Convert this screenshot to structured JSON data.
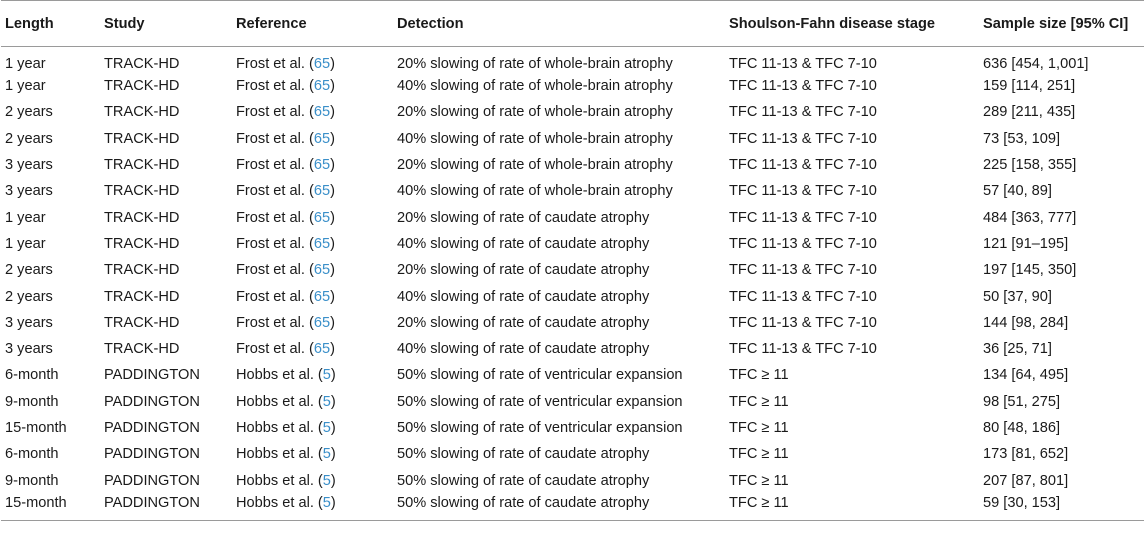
{
  "table": {
    "headers": [
      "Length",
      "Study",
      "Reference",
      "Detection",
      "Shoulson-Fahn disease stage",
      "Sample size [95% CI]"
    ],
    "rows": [
      {
        "length": "1 year",
        "study": "TRACK-HD",
        "ref_author": "Frost et al. (",
        "ref_num": "65",
        "ref_close": ")",
        "detection": "20% slowing of rate of whole-brain atrophy",
        "stage": "TFC 11-13 & TFC 7-10",
        "sample": "636 [454, 1,001]"
      },
      {
        "length": "1 year",
        "study": "TRACK-HD",
        "ref_author": "Frost et al. (",
        "ref_num": "65",
        "ref_close": ")",
        "detection": "40% slowing of rate of whole-brain atrophy",
        "stage": "TFC 11-13 & TFC 7-10",
        "sample": "159 [114, 251]"
      },
      {
        "length": "2 years",
        "study": "TRACK-HD",
        "ref_author": "Frost et al. (",
        "ref_num": "65",
        "ref_close": ")",
        "detection": "20% slowing of rate of whole-brain atrophy",
        "stage": "TFC 11-13 & TFC 7-10",
        "sample": "289 [211, 435]"
      },
      {
        "length": "2 years",
        "study": "TRACK-HD",
        "ref_author": "Frost et al. (",
        "ref_num": "65",
        "ref_close": ")",
        "detection": "40% slowing of rate of whole-brain atrophy",
        "stage": "TFC 11-13 & TFC 7-10",
        "sample": "73 [53, 109]"
      },
      {
        "length": "3 years",
        "study": "TRACK-HD",
        "ref_author": "Frost et al. (",
        "ref_num": "65",
        "ref_close": ")",
        "detection": "20% slowing of rate of whole-brain atrophy",
        "stage": "TFC 11-13 & TFC 7-10",
        "sample": "225 [158, 355]"
      },
      {
        "length": "3 years",
        "study": "TRACK-HD",
        "ref_author": "Frost et al. (",
        "ref_num": "65",
        "ref_close": ")",
        "detection": "40% slowing of rate of whole-brain atrophy",
        "stage": "TFC 11-13 & TFC 7-10",
        "sample": "57 [40, 89]"
      },
      {
        "length": "1 year",
        "study": "TRACK-HD",
        "ref_author": "Frost et al. (",
        "ref_num": "65",
        "ref_close": ")",
        "detection": "20% slowing of rate of caudate atrophy",
        "stage": "TFC 11-13 & TFC 7-10",
        "sample": "484 [363, 777]"
      },
      {
        "length": "1 year",
        "study": "TRACK-HD",
        "ref_author": "Frost et al. (",
        "ref_num": "65",
        "ref_close": ")",
        "detection": "40% slowing of rate of caudate atrophy",
        "stage": "TFC 11-13 & TFC 7-10",
        "sample": "121 [91–195]"
      },
      {
        "length": "2 years",
        "study": "TRACK-HD",
        "ref_author": "Frost et al. (",
        "ref_num": "65",
        "ref_close": ")",
        "detection": "20% slowing of rate of caudate atrophy",
        "stage": "TFC 11-13 & TFC 7-10",
        "sample": "197 [145, 350]"
      },
      {
        "length": "2 years",
        "study": "TRACK-HD",
        "ref_author": "Frost et al. (",
        "ref_num": "65",
        "ref_close": ")",
        "detection": "40% slowing of rate of caudate atrophy",
        "stage": "TFC 11-13 & TFC 7-10",
        "sample": "50 [37, 90]"
      },
      {
        "length": "3 years",
        "study": "TRACK-HD",
        "ref_author": "Frost et al. (",
        "ref_num": "65",
        "ref_close": ")",
        "detection": "20% slowing of rate of caudate atrophy",
        "stage": "TFC 11-13 & TFC 7-10",
        "sample": "144 [98, 284]"
      },
      {
        "length": "3 years",
        "study": "TRACK-HD",
        "ref_author": "Frost et al. (",
        "ref_num": "65",
        "ref_close": ")",
        "detection": "40% slowing of rate of caudate atrophy",
        "stage": "TFC 11-13 & TFC 7-10",
        "sample": "36 [25, 71]"
      },
      {
        "length": "6-month",
        "study": "PADDINGTON",
        "ref_author": "Hobbs et al. (",
        "ref_num": "5",
        "ref_close": ")",
        "detection": "50% slowing of rate of ventricular expansion",
        "stage": "TFC ≥ 11",
        "sample": "134 [64, 495]"
      },
      {
        "length": "9-month",
        "study": "PADDINGTON",
        "ref_author": "Hobbs et al. (",
        "ref_num": "5",
        "ref_close": ")",
        "detection": "50% slowing of rate of ventricular expansion",
        "stage": "TFC ≥ 11",
        "sample": "98 [51, 275]"
      },
      {
        "length": "15-month",
        "study": "PADDINGTON",
        "ref_author": "Hobbs et al. (",
        "ref_num": "5",
        "ref_close": ")",
        "detection": "50% slowing of rate of ventricular expansion",
        "stage": "TFC ≥ 11",
        "sample": "80 [48, 186]"
      },
      {
        "length": "6-month",
        "study": "PADDINGTON",
        "ref_author": "Hobbs et al. (",
        "ref_num": "5",
        "ref_close": ")",
        "detection": "50% slowing of rate of caudate atrophy",
        "stage": "TFC ≥ 11",
        "sample": "173 [81, 652]"
      },
      {
        "length": "9-month",
        "study": "PADDINGTON",
        "ref_author": "Hobbs et al. (",
        "ref_num": "5",
        "ref_close": ")",
        "detection": "50% slowing of rate of caudate atrophy",
        "stage": "TFC ≥ 11",
        "sample": "207 [87, 801]"
      },
      {
        "length": "15-month",
        "study": "PADDINGTON",
        "ref_author": "Hobbs et al. (",
        "ref_num": "5",
        "ref_close": ")",
        "detection": "50% slowing of rate of caudate atrophy",
        "stage": "TFC ≥ 11",
        "sample": "59 [30, 153]"
      }
    ]
  },
  "colors": {
    "citation_link": "#3a8fc9",
    "rule_line": "#9a9a9a",
    "text": "#1a1a1a"
  }
}
